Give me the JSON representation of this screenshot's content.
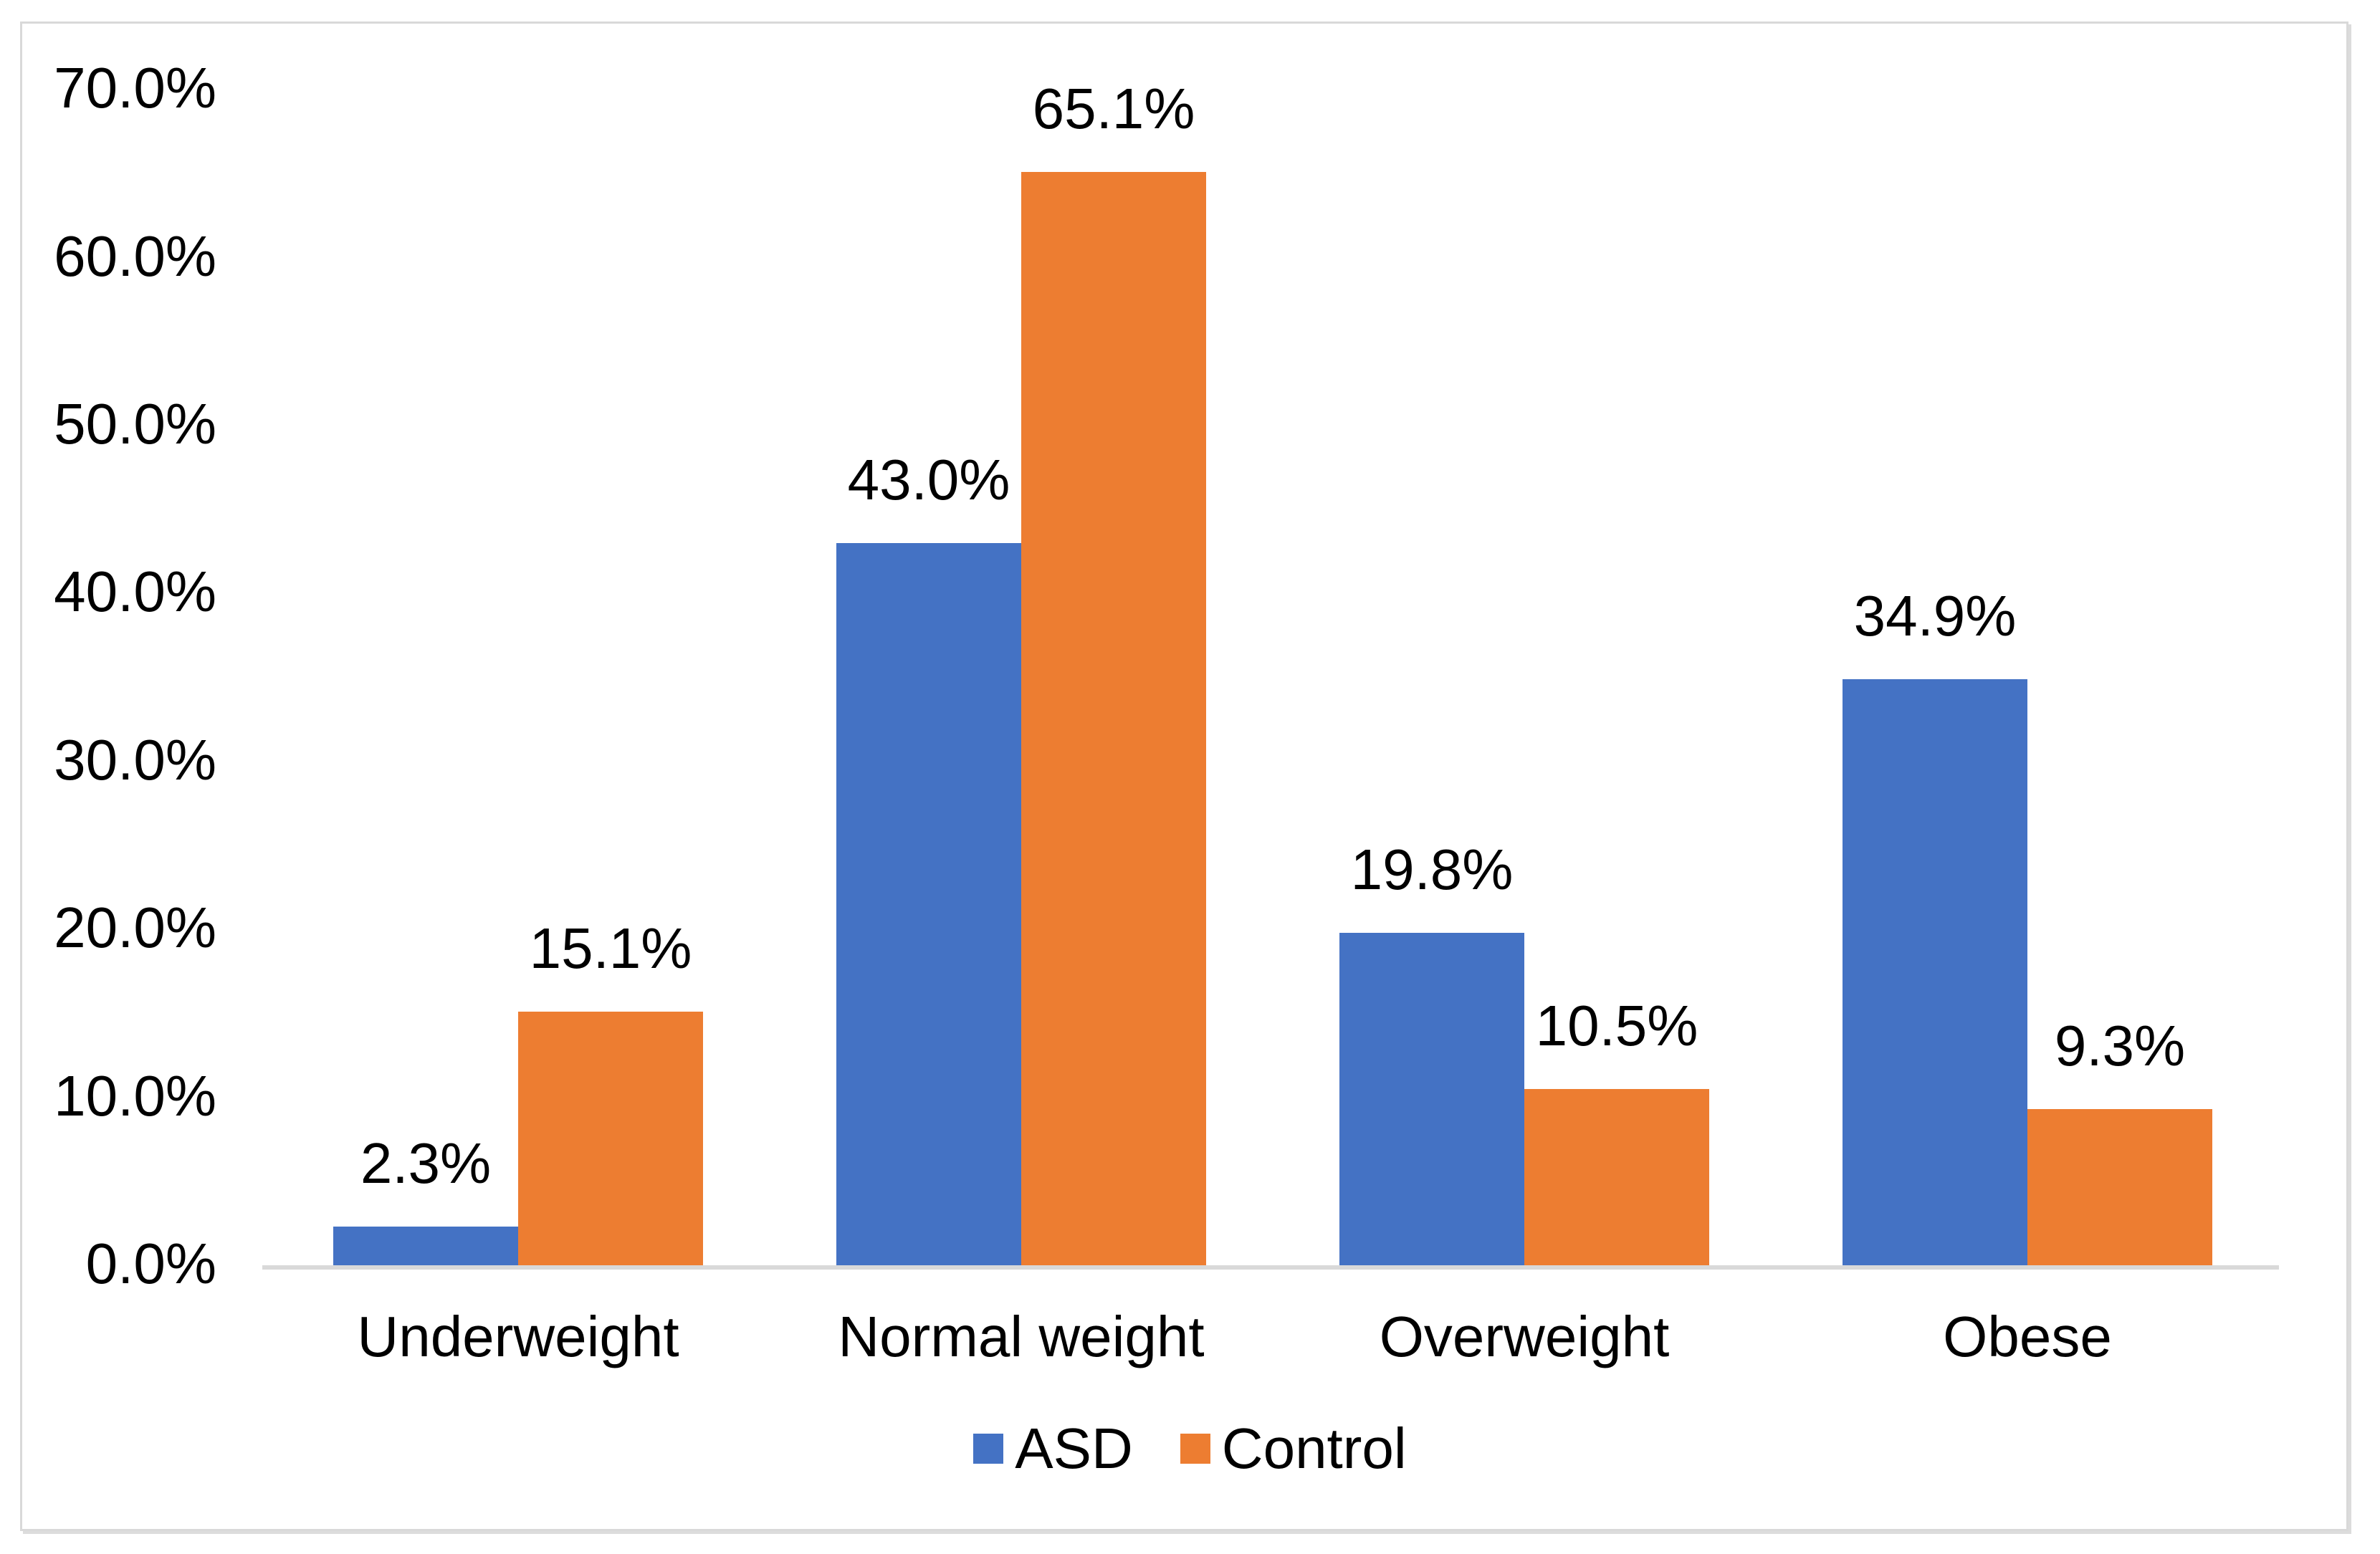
{
  "chart_data": {
    "type": "bar",
    "title": "",
    "xlabel": "",
    "ylabel": "",
    "categories": [
      "Underweight",
      "Normal weight",
      "Overweight",
      "Obese"
    ],
    "series": [
      {
        "name": "ASD",
        "color": "#4472C4",
        "values": [
          2.3,
          43.0,
          19.8,
          34.9
        ],
        "data_labels": [
          "2.3%",
          "43.0%",
          "19.8%",
          "34.9%"
        ]
      },
      {
        "name": "Control",
        "color": "#ED7D31",
        "values": [
          15.1,
          65.1,
          10.5,
          9.3
        ],
        "data_labels": [
          "15.1%",
          "65.1%",
          "10.5%",
          "9.3%"
        ]
      }
    ],
    "y_axis": {
      "min": 0,
      "max": 70,
      "step": 10,
      "tick_labels": [
        "0.0%",
        "10.0%",
        "20.0%",
        "30.0%",
        "40.0%",
        "50.0%",
        "60.0%",
        "70.0%"
      ]
    },
    "grid": false,
    "legend_position": "bottom-center",
    "legend": [
      {
        "label": "ASD",
        "color": "#4472C4"
      },
      {
        "label": "Control",
        "color": "#ED7D31"
      }
    ]
  },
  "colors": {
    "asd_bar": "#4472C4",
    "control_bar": "#ED7D31",
    "axis_line": "#D9D9D9",
    "frame_border": "#D9D9D9",
    "text": "#000000",
    "background": "#FFFFFF"
  }
}
